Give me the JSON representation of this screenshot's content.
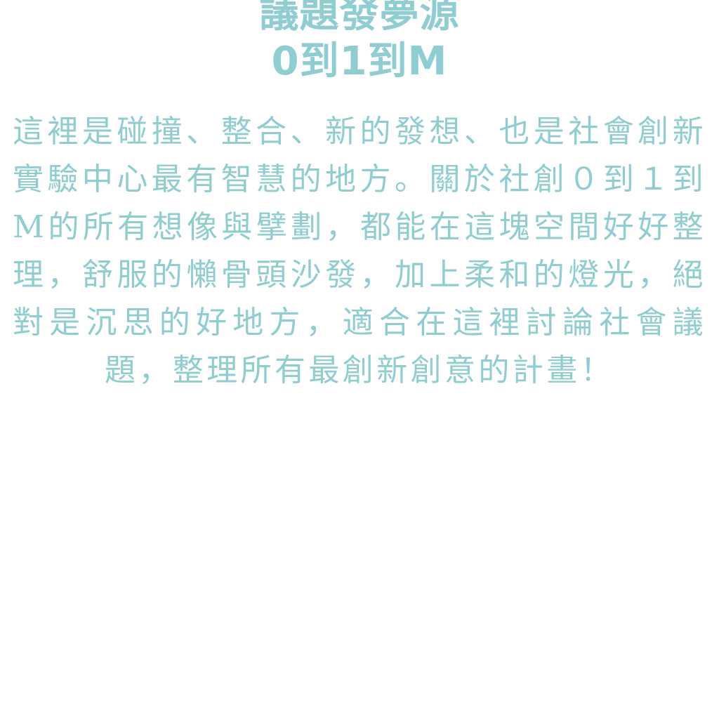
{
  "colors": {
    "accent": "#8ecdd1",
    "background": "#ffffff"
  },
  "title": {
    "line1": "議題發夢源",
    "line2": "0到1到M"
  },
  "body": "這裡是碰撞、整合、新的發想、也是社會創新實驗中心最有智慧的地方。關於社創０到１到M的所有想像與擘劃，都能在這塊空間好好整理，舒服的懶骨頭沙發，加上柔和的燈光，絕對是沉思的好地方，適合在這裡討論社會議題，整理所有最創新創意的計畫！"
}
